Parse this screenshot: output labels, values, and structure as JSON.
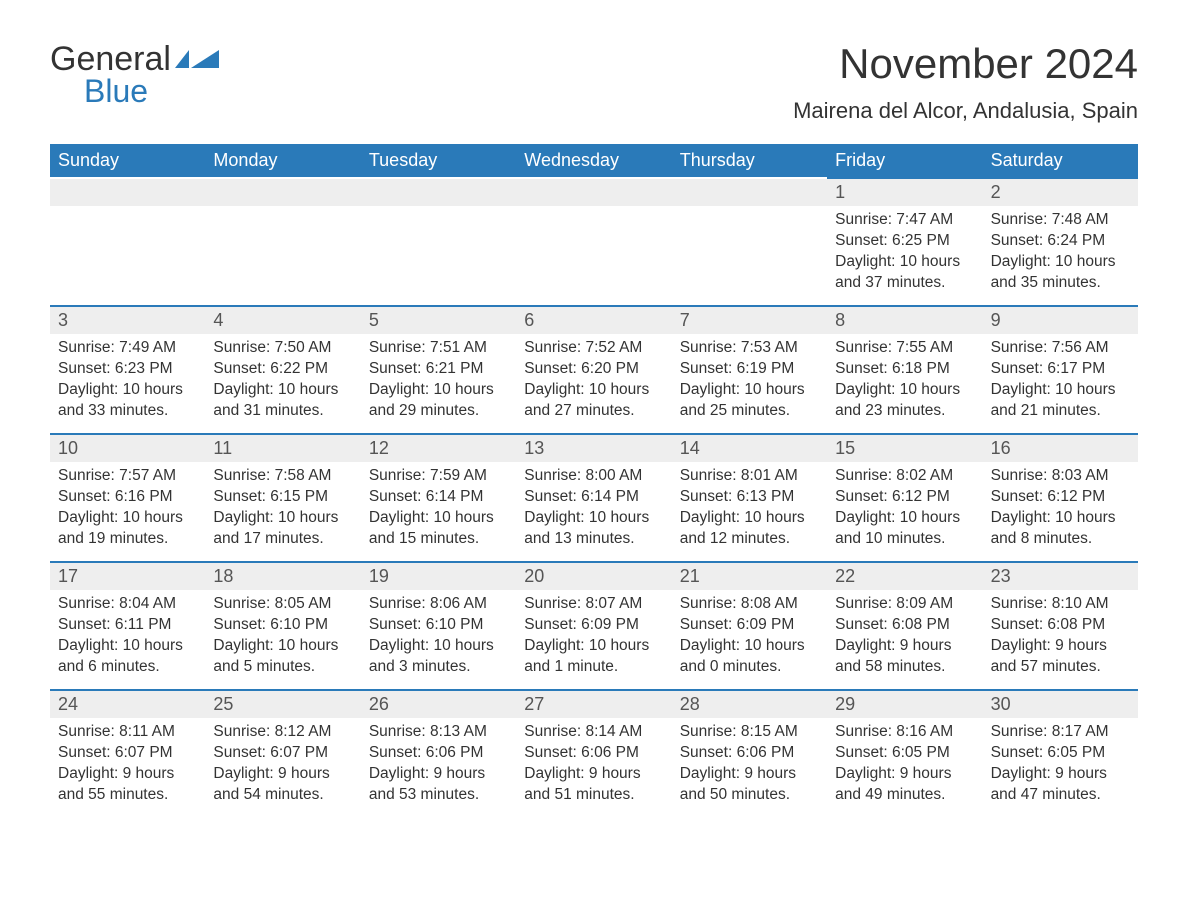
{
  "brand": {
    "part1": "General",
    "part2": "Blue"
  },
  "colors": {
    "brand_blue": "#2a7ab9",
    "header_bg": "#2a7ab9",
    "header_text": "#ffffff",
    "daynum_bg": "#eeeeee",
    "body_text": "#333333",
    "page_bg": "#ffffff"
  },
  "title": "November 2024",
  "location": "Mairena del Alcor, Andalusia, Spain",
  "weekdays": [
    "Sunday",
    "Monday",
    "Tuesday",
    "Wednesday",
    "Thursday",
    "Friday",
    "Saturday"
  ],
  "leading_blanks": 5,
  "days": [
    {
      "n": "1",
      "sunrise": "Sunrise: 7:47 AM",
      "sunset": "Sunset: 6:25 PM",
      "daylight": "Daylight: 10 hours and 37 minutes."
    },
    {
      "n": "2",
      "sunrise": "Sunrise: 7:48 AM",
      "sunset": "Sunset: 6:24 PM",
      "daylight": "Daylight: 10 hours and 35 minutes."
    },
    {
      "n": "3",
      "sunrise": "Sunrise: 7:49 AM",
      "sunset": "Sunset: 6:23 PM",
      "daylight": "Daylight: 10 hours and 33 minutes."
    },
    {
      "n": "4",
      "sunrise": "Sunrise: 7:50 AM",
      "sunset": "Sunset: 6:22 PM",
      "daylight": "Daylight: 10 hours and 31 minutes."
    },
    {
      "n": "5",
      "sunrise": "Sunrise: 7:51 AM",
      "sunset": "Sunset: 6:21 PM",
      "daylight": "Daylight: 10 hours and 29 minutes."
    },
    {
      "n": "6",
      "sunrise": "Sunrise: 7:52 AM",
      "sunset": "Sunset: 6:20 PM",
      "daylight": "Daylight: 10 hours and 27 minutes."
    },
    {
      "n": "7",
      "sunrise": "Sunrise: 7:53 AM",
      "sunset": "Sunset: 6:19 PM",
      "daylight": "Daylight: 10 hours and 25 minutes."
    },
    {
      "n": "8",
      "sunrise": "Sunrise: 7:55 AM",
      "sunset": "Sunset: 6:18 PM",
      "daylight": "Daylight: 10 hours and 23 minutes."
    },
    {
      "n": "9",
      "sunrise": "Sunrise: 7:56 AM",
      "sunset": "Sunset: 6:17 PM",
      "daylight": "Daylight: 10 hours and 21 minutes."
    },
    {
      "n": "10",
      "sunrise": "Sunrise: 7:57 AM",
      "sunset": "Sunset: 6:16 PM",
      "daylight": "Daylight: 10 hours and 19 minutes."
    },
    {
      "n": "11",
      "sunrise": "Sunrise: 7:58 AM",
      "sunset": "Sunset: 6:15 PM",
      "daylight": "Daylight: 10 hours and 17 minutes."
    },
    {
      "n": "12",
      "sunrise": "Sunrise: 7:59 AM",
      "sunset": "Sunset: 6:14 PM",
      "daylight": "Daylight: 10 hours and 15 minutes."
    },
    {
      "n": "13",
      "sunrise": "Sunrise: 8:00 AM",
      "sunset": "Sunset: 6:14 PM",
      "daylight": "Daylight: 10 hours and 13 minutes."
    },
    {
      "n": "14",
      "sunrise": "Sunrise: 8:01 AM",
      "sunset": "Sunset: 6:13 PM",
      "daylight": "Daylight: 10 hours and 12 minutes."
    },
    {
      "n": "15",
      "sunrise": "Sunrise: 8:02 AM",
      "sunset": "Sunset: 6:12 PM",
      "daylight": "Daylight: 10 hours and 10 minutes."
    },
    {
      "n": "16",
      "sunrise": "Sunrise: 8:03 AM",
      "sunset": "Sunset: 6:12 PM",
      "daylight": "Daylight: 10 hours and 8 minutes."
    },
    {
      "n": "17",
      "sunrise": "Sunrise: 8:04 AM",
      "sunset": "Sunset: 6:11 PM",
      "daylight": "Daylight: 10 hours and 6 minutes."
    },
    {
      "n": "18",
      "sunrise": "Sunrise: 8:05 AM",
      "sunset": "Sunset: 6:10 PM",
      "daylight": "Daylight: 10 hours and 5 minutes."
    },
    {
      "n": "19",
      "sunrise": "Sunrise: 8:06 AM",
      "sunset": "Sunset: 6:10 PM",
      "daylight": "Daylight: 10 hours and 3 minutes."
    },
    {
      "n": "20",
      "sunrise": "Sunrise: 8:07 AM",
      "sunset": "Sunset: 6:09 PM",
      "daylight": "Daylight: 10 hours and 1 minute."
    },
    {
      "n": "21",
      "sunrise": "Sunrise: 8:08 AM",
      "sunset": "Sunset: 6:09 PM",
      "daylight": "Daylight: 10 hours and 0 minutes."
    },
    {
      "n": "22",
      "sunrise": "Sunrise: 8:09 AM",
      "sunset": "Sunset: 6:08 PM",
      "daylight": "Daylight: 9 hours and 58 minutes."
    },
    {
      "n": "23",
      "sunrise": "Sunrise: 8:10 AM",
      "sunset": "Sunset: 6:08 PM",
      "daylight": "Daylight: 9 hours and 57 minutes."
    },
    {
      "n": "24",
      "sunrise": "Sunrise: 8:11 AM",
      "sunset": "Sunset: 6:07 PM",
      "daylight": "Daylight: 9 hours and 55 minutes."
    },
    {
      "n": "25",
      "sunrise": "Sunrise: 8:12 AM",
      "sunset": "Sunset: 6:07 PM",
      "daylight": "Daylight: 9 hours and 54 minutes."
    },
    {
      "n": "26",
      "sunrise": "Sunrise: 8:13 AM",
      "sunset": "Sunset: 6:06 PM",
      "daylight": "Daylight: 9 hours and 53 minutes."
    },
    {
      "n": "27",
      "sunrise": "Sunrise: 8:14 AM",
      "sunset": "Sunset: 6:06 PM",
      "daylight": "Daylight: 9 hours and 51 minutes."
    },
    {
      "n": "28",
      "sunrise": "Sunrise: 8:15 AM",
      "sunset": "Sunset: 6:06 PM",
      "daylight": "Daylight: 9 hours and 50 minutes."
    },
    {
      "n": "29",
      "sunrise": "Sunrise: 8:16 AM",
      "sunset": "Sunset: 6:05 PM",
      "daylight": "Daylight: 9 hours and 49 minutes."
    },
    {
      "n": "30",
      "sunrise": "Sunrise: 8:17 AM",
      "sunset": "Sunset: 6:05 PM",
      "daylight": "Daylight: 9 hours and 47 minutes."
    }
  ]
}
